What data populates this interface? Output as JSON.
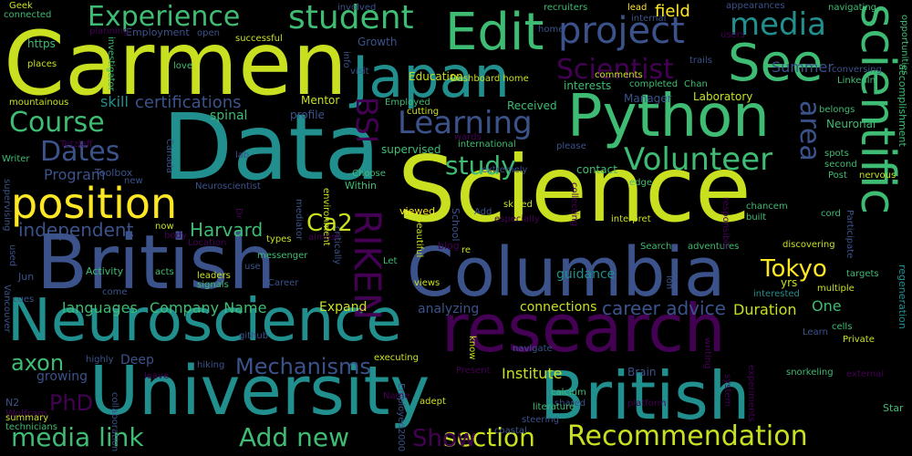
{
  "palette": {
    "background": "#000000",
    "yellow_green": "#c9e020",
    "bright_green": "#3fbc73",
    "teal": "#218f8d",
    "slate_blue": "#3b528b",
    "deep_purple": "#440154",
    "yellow": "#fde725"
  },
  "words": [
    {
      "text": "Carmen"
    },
    {
      "text": "Data"
    },
    {
      "text": "Science"
    },
    {
      "text": "British"
    },
    {
      "text": "Columbia"
    },
    {
      "text": "University"
    },
    {
      "text": "British"
    },
    {
      "text": "research"
    },
    {
      "text": "Neuroscience"
    },
    {
      "text": "Python"
    },
    {
      "text": "Japan"
    },
    {
      "text": "Edit"
    },
    {
      "text": "See"
    },
    {
      "text": "scientific"
    },
    {
      "text": "position"
    },
    {
      "text": "project"
    },
    {
      "text": "student"
    },
    {
      "text": "Experience"
    },
    {
      "text": "media"
    },
    {
      "text": "Learning"
    },
    {
      "text": "Course"
    },
    {
      "text": "Dates"
    },
    {
      "text": "Volunteer"
    },
    {
      "text": "study"
    },
    {
      "text": "RIKEN"
    },
    {
      "text": "BSI"
    },
    {
      "text": "Scientist"
    },
    {
      "text": "area"
    },
    {
      "text": "Tokyo"
    },
    {
      "text": "Ca2"
    },
    {
      "text": "independent"
    },
    {
      "text": "Harvard"
    },
    {
      "text": "Recommendation"
    },
    {
      "text": "section"
    },
    {
      "text": "media link"
    },
    {
      "text": "Add new"
    },
    {
      "text": "Show"
    },
    {
      "text": "Mechanisms"
    },
    {
      "text": "axon"
    },
    {
      "text": "PhD"
    },
    {
      "text": "career advice"
    },
    {
      "text": "Company Name"
    },
    {
      "text": "languages"
    },
    {
      "text": "certifications"
    },
    {
      "text": "Program"
    },
    {
      "text": "skill"
    },
    {
      "text": "Summer"
    },
    {
      "text": "Institute"
    },
    {
      "text": "Duration"
    },
    {
      "text": "One"
    },
    {
      "text": "connections"
    },
    {
      "text": "analyzing"
    },
    {
      "text": "guidance"
    },
    {
      "text": "Brain"
    },
    {
      "text": "Deep"
    },
    {
      "text": "growing"
    },
    {
      "text": "Expand"
    },
    {
      "text": "field"
    },
    {
      "text": "Laboratory"
    },
    {
      "text": "Manager"
    },
    {
      "text": "interests"
    },
    {
      "text": "supervised"
    },
    {
      "text": "spinal"
    },
    {
      "text": "Mentor"
    },
    {
      "text": "Education"
    },
    {
      "text": "Growth"
    },
    {
      "text": "Received"
    },
    {
      "text": "contact"
    },
    {
      "text": "Neuronal"
    },
    {
      "text": "https"
    },
    {
      "text": "Employment"
    },
    {
      "text": "yrs"
    },
    {
      "text": "accomplishment"
    },
    {
      "text": "regeneration"
    },
    {
      "text": "viewed"
    },
    {
      "text": "Within"
    },
    {
      "text": "blog"
    },
    {
      "text": "School"
    },
    {
      "text": "Activity"
    },
    {
      "text": "Jun"
    },
    {
      "text": "N2"
    },
    {
      "text": "Wolfram"
    },
    {
      "text": "summary"
    },
    {
      "text": "technicians"
    },
    {
      "text": "LinkedIn"
    },
    {
      "text": "Geek"
    },
    {
      "text": "connected"
    },
    {
      "text": "planning"
    },
    {
      "text": "places"
    },
    {
      "text": "mountainous"
    },
    {
      "text": "Toolbox"
    },
    {
      "text": "Neuroscientist"
    },
    {
      "text": "profile"
    },
    {
      "text": "Location"
    },
    {
      "text": "messenger"
    },
    {
      "text": "skilled"
    },
    {
      "text": "especially"
    },
    {
      "text": "interpret"
    },
    {
      "text": "chancem"
    },
    {
      "text": "built"
    },
    {
      "text": "discovering"
    },
    {
      "text": "targets"
    },
    {
      "text": "multiple"
    },
    {
      "text": "interested"
    },
    {
      "text": "cells"
    },
    {
      "text": "Private"
    },
    {
      "text": "snorkeling"
    },
    {
      "text": "external"
    },
    {
      "text": "Star"
    },
    {
      "text": "platform"
    },
    {
      "text": "system"
    },
    {
      "text": "calcium"
    },
    {
      "text": "shared"
    },
    {
      "text": "literature"
    },
    {
      "text": "steering"
    },
    {
      "text": "coastal"
    },
    {
      "text": "adept"
    },
    {
      "text": "Employed2000"
    },
    {
      "text": "Present"
    },
    {
      "text": "executing"
    },
    {
      "text": "hiking"
    },
    {
      "text": "leave"
    },
    {
      "text": "highly"
    },
    {
      "text": "Vancouver"
    },
    {
      "text": "cues"
    },
    {
      "text": "used"
    },
    {
      "text": "acts"
    },
    {
      "text": "leaders"
    },
    {
      "text": "signals"
    },
    {
      "text": "Career"
    },
    {
      "text": "views"
    },
    {
      "text": "cutting"
    },
    {
      "text": "Employed"
    },
    {
      "text": "wards"
    },
    {
      "text": "international"
    },
    {
      "text": "extremely"
    },
    {
      "text": "Choose"
    },
    {
      "text": "recruiters"
    },
    {
      "text": "lead"
    },
    {
      "text": "involved"
    },
    {
      "text": "successful"
    },
    {
      "text": "love"
    },
    {
      "text": "investigator"
    },
    {
      "text": "Dashboard home"
    },
    {
      "text": "completed"
    },
    {
      "text": "Chan"
    },
    {
      "text": "trails"
    },
    {
      "text": "comments"
    },
    {
      "text": "users"
    },
    {
      "text": "internal"
    },
    {
      "text": "appearances"
    },
    {
      "text": "navigating"
    },
    {
      "text": "opportunities"
    },
    {
      "text": "conversing"
    },
    {
      "text": "home"
    },
    {
      "text": "belongs"
    },
    {
      "text": "nervous"
    },
    {
      "text": "spots"
    },
    {
      "text": "second"
    },
    {
      "text": "Post"
    },
    {
      "text": "Participate"
    },
    {
      "text": "cord"
    },
    {
      "text": "Search"
    },
    {
      "text": "adventures"
    },
    {
      "text": "responsible"
    },
    {
      "text": "edge"
    },
    {
      "text": "collecting"
    },
    {
      "text": "beautiful"
    },
    {
      "text": "environment"
    },
    {
      "text": "critically"
    },
    {
      "text": "mediator"
    },
    {
      "text": "types"
    },
    {
      "text": "almost"
    },
    {
      "text": "Let"
    },
    {
      "text": "re"
    },
    {
      "text": "ion"
    },
    {
      "text": "navigate"
    },
    {
      "text": "writing"
    },
    {
      "text": "experiments"
    },
    {
      "text": "Name"
    },
    {
      "text": "github"
    },
    {
      "text": "collaboration"
    },
    {
      "text": "Writer"
    },
    {
      "text": "supervising"
    },
    {
      "text": "Tetzlaff"
    },
    {
      "text": "Canada"
    },
    {
      "text": "lab"
    },
    {
      "text": "Dr"
    },
    {
      "text": "now"
    },
    {
      "text": "body"
    },
    {
      "text": "new"
    },
    {
      "text": "use"
    },
    {
      "text": "come"
    },
    {
      "text": "info"
    },
    {
      "text": "visit"
    },
    {
      "text": "open"
    },
    {
      "text": "Add"
    },
    {
      "text": "please"
    },
    {
      "text": "know"
    },
    {
      "text": "Learn"
    }
  ]
}
